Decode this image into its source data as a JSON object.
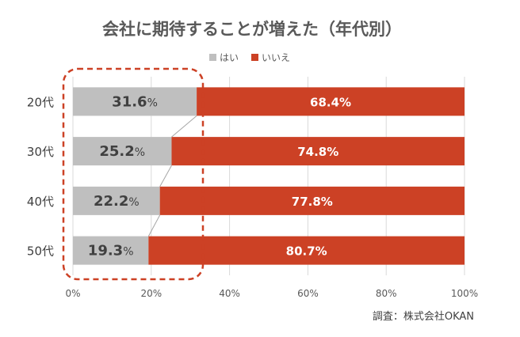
{
  "chart_data": {
    "type": "bar",
    "orientation": "horizontal",
    "stacked": true,
    "title": "会社に期待することが増えた（年代別）",
    "categories": [
      "20代",
      "30代",
      "40代",
      "50代"
    ],
    "series": [
      {
        "name": "はい",
        "values": [
          31.6,
          25.2,
          22.2,
          19.3
        ],
        "labels": [
          "31.6%",
          "25.2%",
          "22.2%",
          "19.3%"
        ],
        "color": "#bfbfbf"
      },
      {
        "name": "いいえ",
        "values": [
          68.4,
          74.8,
          77.8,
          80.7
        ],
        "labels": [
          "68.4%",
          "74.8%",
          "77.8%",
          "80.7%"
        ],
        "color": "#cc4125"
      }
    ],
    "xlim": [
      0,
      100
    ],
    "xticks": [
      "0%",
      "20%",
      "40%",
      "60%",
      "80%",
      "100%"
    ],
    "grid": true,
    "legend": "top",
    "series_lines": true,
    "highlight": {
      "series": "はい",
      "style": "dashed rounded box",
      "color": "#cc4125"
    },
    "source": "調査：株式会社OKAN"
  }
}
